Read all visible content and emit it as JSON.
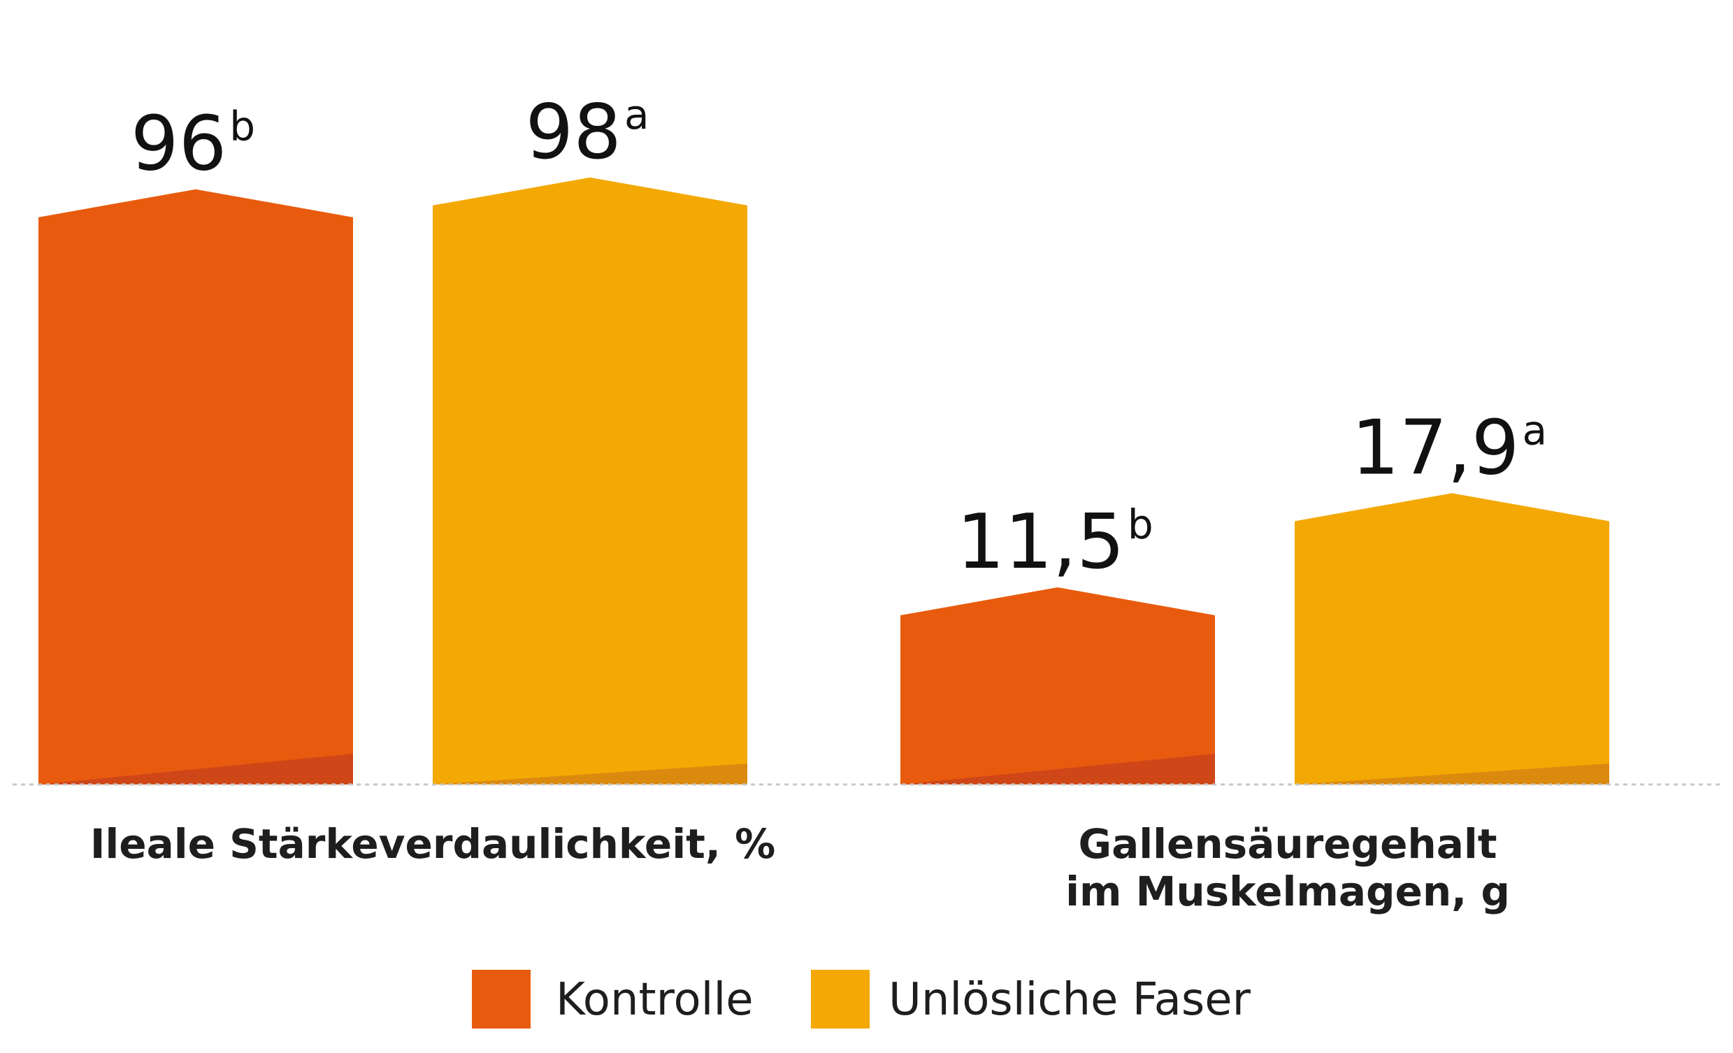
{
  "chart_data": {
    "type": "bar",
    "categories": [
      [
        "Ileale Stärkeverdaulichkeit, %"
      ],
      [
        "Gallensäuregehalt",
        "im Muskelmagen, g"
      ]
    ],
    "series": [
      {
        "name": "Kontrolle",
        "color": "#e85b0e",
        "values": [
          96,
          11.5
        ],
        "labels": [
          "96",
          "11,5"
        ],
        "superscripts": [
          "b",
          "b"
        ]
      },
      {
        "name": "Unlösliche Faser",
        "color": "#f4a803",
        "values": [
          98,
          17.9
        ],
        "labels": [
          "98",
          "17,9"
        ],
        "superscripts": [
          "a",
          "a"
        ]
      }
    ],
    "baseline": "dashed",
    "legend": "bottom"
  }
}
